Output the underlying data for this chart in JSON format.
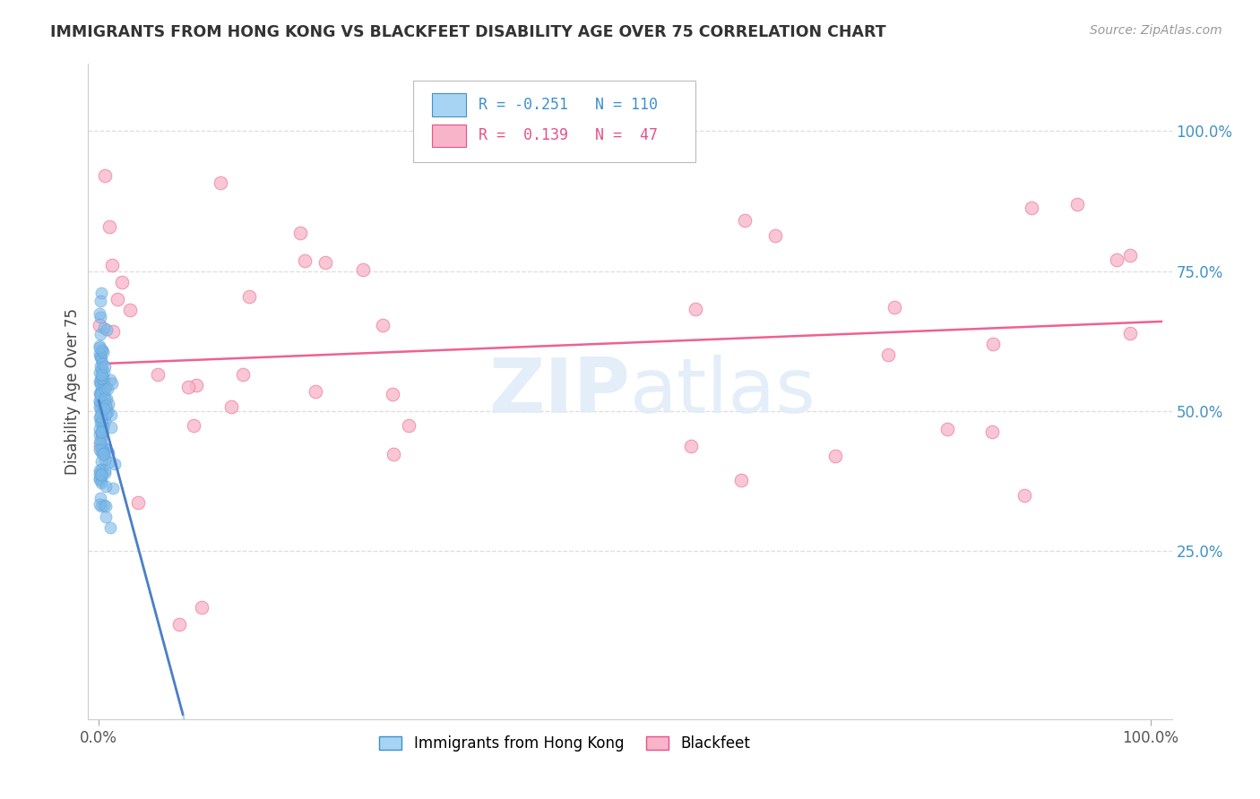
{
  "title": "IMMIGRANTS FROM HONG KONG VS BLACKFEET DISABILITY AGE OVER 75 CORRELATION CHART",
  "source": "Source: ZipAtlas.com",
  "ylabel": "Disability Age Over 75",
  "x_tick_labels": [
    "0.0%",
    "100.0%"
  ],
  "x_tick_vals": [
    0.0,
    1.0
  ],
  "y_tick_labels_right": [
    "25.0%",
    "50.0%",
    "75.0%",
    "100.0%"
  ],
  "y_tick_vals_right": [
    0.25,
    0.5,
    0.75,
    1.0
  ],
  "series1_color": "#7ab8e8",
  "series1_edge": "#5a9fd4",
  "series2_color": "#f8b4c8",
  "series2_edge": "#f080a0",
  "series1_label": "Immigrants from Hong Kong",
  "series2_label": "Blackfeet",
  "R1": -0.251,
  "N1": 110,
  "R2": 0.139,
  "N2": 47,
  "legend_R1_color": "#4090d0",
  "legend_R2_color": "#e8508a",
  "legend_R1_fill": "#a8d4f4",
  "legend_R2_fill": "#f8b4c8",
  "watermark_zip": "ZIP",
  "watermark_atlas": "atlas",
  "trend1_color": "#4a80c8",
  "trend1_dash_color": "#b8c8e8",
  "trend2_color": "#f06090",
  "xlim": [
    -0.01,
    1.02
  ],
  "ylim": [
    -0.05,
    1.12
  ]
}
